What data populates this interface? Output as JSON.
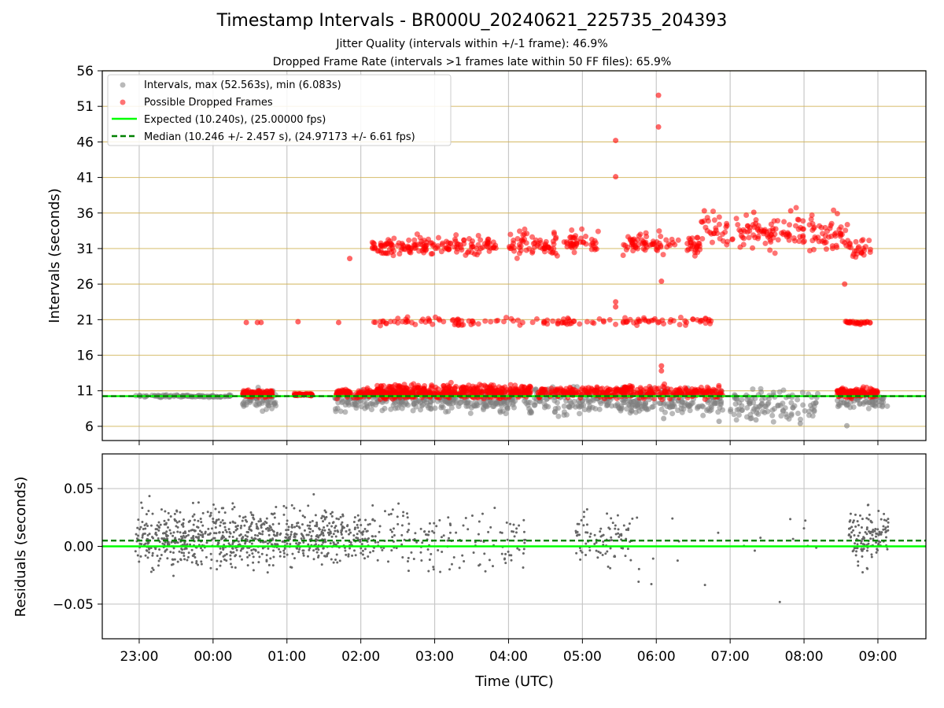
{
  "title": "Timestamp Intervals - BR000U_20240621_225735_204393",
  "subtitle_lines": [
    "Jitter Quality (intervals within +/-1 frame): 46.9%",
    "Dropped Frame Rate (intervals >1 frames late within 50 FF files): 65.9%"
  ],
  "colors": {
    "interval_points": "#808080",
    "dropped_points": "#ff0000",
    "expected_line": "#00ff00",
    "median_line": "#008000",
    "horizontal_guides": "#d2b45a",
    "grid": "#c8c8c8",
    "residual_points": "#666666"
  },
  "chart_data": [
    {
      "type": "scatter",
      "panel": "intervals",
      "ylabel": "Intervals (seconds)",
      "ylim": [
        4,
        56
      ],
      "yticks": [
        6,
        11,
        16,
        21,
        26,
        31,
        36,
        41,
        46,
        51,
        56
      ],
      "xlim_hours": [
        -1.5,
        9.65
      ],
      "xticks": [
        "23:00",
        "00:00",
        "01:00",
        "02:00",
        "03:00",
        "04:00",
        "05:00",
        "06:00",
        "07:00",
        "08:00",
        "09:00"
      ],
      "grid": "vertical",
      "legend_position": "top-left",
      "legend": [
        "Intervals, max (52.563s), min (6.083s)",
        "Possible Dropped Frames",
        "Expected (10.240s), (25.00000 fps)",
        "Median (10.246 +/- 2.457 s), (24.97173 +/- 6.61 fps)"
      ],
      "expected_interval": 10.24,
      "median_interval": 10.246,
      "max_interval": 52.563,
      "min_interval": 6.083,
      "series": [
        {
          "name": "Intervals, max (52.563s), min (6.083s)",
          "clusters": [
            {
              "x_start": -1.05,
              "x_end": 0.25,
              "y_center": 10.24,
              "y_spread": 0.15,
              "count": 90
            },
            {
              "x_start": 0.4,
              "x_end": 0.85,
              "y_center": 9.7,
              "y_spread": 1.5,
              "count": 60
            },
            {
              "x_start": 1.65,
              "x_end": 4.1,
              "y_center": 9.6,
              "y_spread": 1.4,
              "count": 300
            },
            {
              "x_start": 4.2,
              "x_end": 5.9,
              "y_center": 9.3,
              "y_spread": 1.8,
              "count": 180
            },
            {
              "x_start": 5.9,
              "x_end": 6.9,
              "y_center": 9.4,
              "y_spread": 1.6,
              "count": 100
            },
            {
              "x_start": 7.0,
              "x_end": 8.2,
              "y_center": 9.0,
              "y_spread": 2.0,
              "count": 110
            },
            {
              "x_start": 8.45,
              "x_end": 9.15,
              "y_center": 9.7,
              "y_spread": 1.2,
              "count": 70
            }
          ],
          "points": [
            {
              "x": 8.58,
              "y": 6.08
            },
            {
              "x": 7.95,
              "y": 6.4
            },
            {
              "x": 7.35,
              "y": 6.9
            },
            {
              "x": 6.85,
              "y": 6.7
            },
            {
              "x": 6.1,
              "y": 7.1
            }
          ]
        },
        {
          "name": "Possible Dropped Frames",
          "clusters": [
            {
              "x_start": 0.4,
              "x_end": 0.8,
              "y_center": 10.6,
              "y_spread": 0.5,
              "count": 120
            },
            {
              "x_start": 1.1,
              "x_end": 1.35,
              "y_center": 10.45,
              "y_spread": 0.15,
              "count": 60
            },
            {
              "x_start": 1.65,
              "x_end": 4.3,
              "y_center": 10.6,
              "y_spread": 0.6,
              "count": 400
            },
            {
              "x_start": 2.15,
              "x_end": 4.3,
              "y_center": 11.3,
              "y_spread": 0.6,
              "count": 150
            },
            {
              "x_start": 4.4,
              "x_end": 6.9,
              "y_center": 10.8,
              "y_spread": 0.8,
              "count": 350
            },
            {
              "x_start": 8.45,
              "x_end": 9.0,
              "y_center": 10.7,
              "y_spread": 0.6,
              "count": 120
            },
            {
              "x_start": 2.15,
              "x_end": 3.0,
              "y_center": 31.3,
              "y_spread": 1.2,
              "count": 90
            },
            {
              "x_start": 3.0,
              "x_end": 3.85,
              "y_center": 31.5,
              "y_spread": 1.3,
              "count": 70
            },
            {
              "x_start": 4.0,
              "x_end": 5.25,
              "y_center": 31.7,
              "y_spread": 1.8,
              "count": 110
            },
            {
              "x_start": 5.55,
              "x_end": 6.6,
              "y_center": 31.6,
              "y_spread": 1.5,
              "count": 90
            },
            {
              "x_start": 6.6,
              "x_end": 7.5,
              "y_center": 33.5,
              "y_spread": 2.2,
              "count": 70
            },
            {
              "x_start": 7.5,
              "x_end": 8.6,
              "y_center": 33.0,
              "y_spread": 2.5,
              "count": 100
            },
            {
              "x_start": 8.6,
              "x_end": 8.9,
              "y_center": 31.0,
              "y_spread": 1.3,
              "count": 25
            },
            {
              "x_start": 2.15,
              "x_end": 3.6,
              "y_center": 20.7,
              "y_spread": 0.6,
              "count": 50
            },
            {
              "x_start": 3.6,
              "x_end": 6.75,
              "y_center": 20.8,
              "y_spread": 0.5,
              "count": 90
            },
            {
              "x_start": 8.55,
              "x_end": 8.9,
              "y_center": 20.6,
              "y_spread": 0.2,
              "count": 30
            }
          ],
          "points": [
            {
              "x": 6.03,
              "y": 52.56
            },
            {
              "x": 6.03,
              "y": 48.1
            },
            {
              "x": 5.45,
              "y": 46.2
            },
            {
              "x": 5.45,
              "y": 41.1
            },
            {
              "x": 5.45,
              "y": 23.5
            },
            {
              "x": 5.45,
              "y": 22.8
            },
            {
              "x": 6.07,
              "y": 26.4
            },
            {
              "x": 6.07,
              "y": 14.5
            },
            {
              "x": 6.07,
              "y": 13.8
            },
            {
              "x": 1.85,
              "y": 29.6
            },
            {
              "x": 0.45,
              "y": 20.6
            },
            {
              "x": 0.6,
              "y": 20.6
            },
            {
              "x": 0.65,
              "y": 20.6
            },
            {
              "x": 1.15,
              "y": 20.7
            },
            {
              "x": 1.7,
              "y": 20.6
            },
            {
              "x": 8.55,
              "y": 26.0
            },
            {
              "x": 7.82,
              "y": 36.3
            },
            {
              "x": 7.32,
              "y": 36.1
            },
            {
              "x": 6.65,
              "y": 36.3
            }
          ]
        },
        {
          "name": "Expected (10.240s), (25.00000 fps)",
          "y": 10.24
        },
        {
          "name": "Median (10.246 +/- 2.457 s), (24.97173 +/- 6.61 fps)",
          "y": 10.246
        }
      ]
    },
    {
      "type": "scatter",
      "panel": "residuals",
      "ylabel": "Residuals (seconds)",
      "xlabel": "Time (UTC)",
      "ylim": [
        -0.08,
        0.08
      ],
      "yticks": [
        "−0.05",
        "0.00",
        "0.05"
      ],
      "ytick_values": [
        -0.05,
        0.0,
        0.05
      ],
      "grid": "both",
      "zero_line": 0.0,
      "median_offset": 0.005,
      "clusters": [
        {
          "x_start": -1.05,
          "x_end": 2.2,
          "y_center": 0.008,
          "y_spread": 0.022,
          "count": 850
        },
        {
          "x_start": 2.2,
          "x_end": 4.25,
          "y_center": 0.005,
          "y_spread": 0.025,
          "count": 150
        },
        {
          "x_start": 4.9,
          "x_end": 5.7,
          "y_center": 0.006,
          "y_spread": 0.022,
          "count": 90
        },
        {
          "x_start": 5.7,
          "x_end": 8.4,
          "y_center": 0.0,
          "y_spread": 0.05,
          "count": 20
        },
        {
          "x_start": 8.6,
          "x_end": 9.15,
          "y_center": 0.008,
          "y_spread": 0.022,
          "count": 130
        }
      ]
    }
  ]
}
